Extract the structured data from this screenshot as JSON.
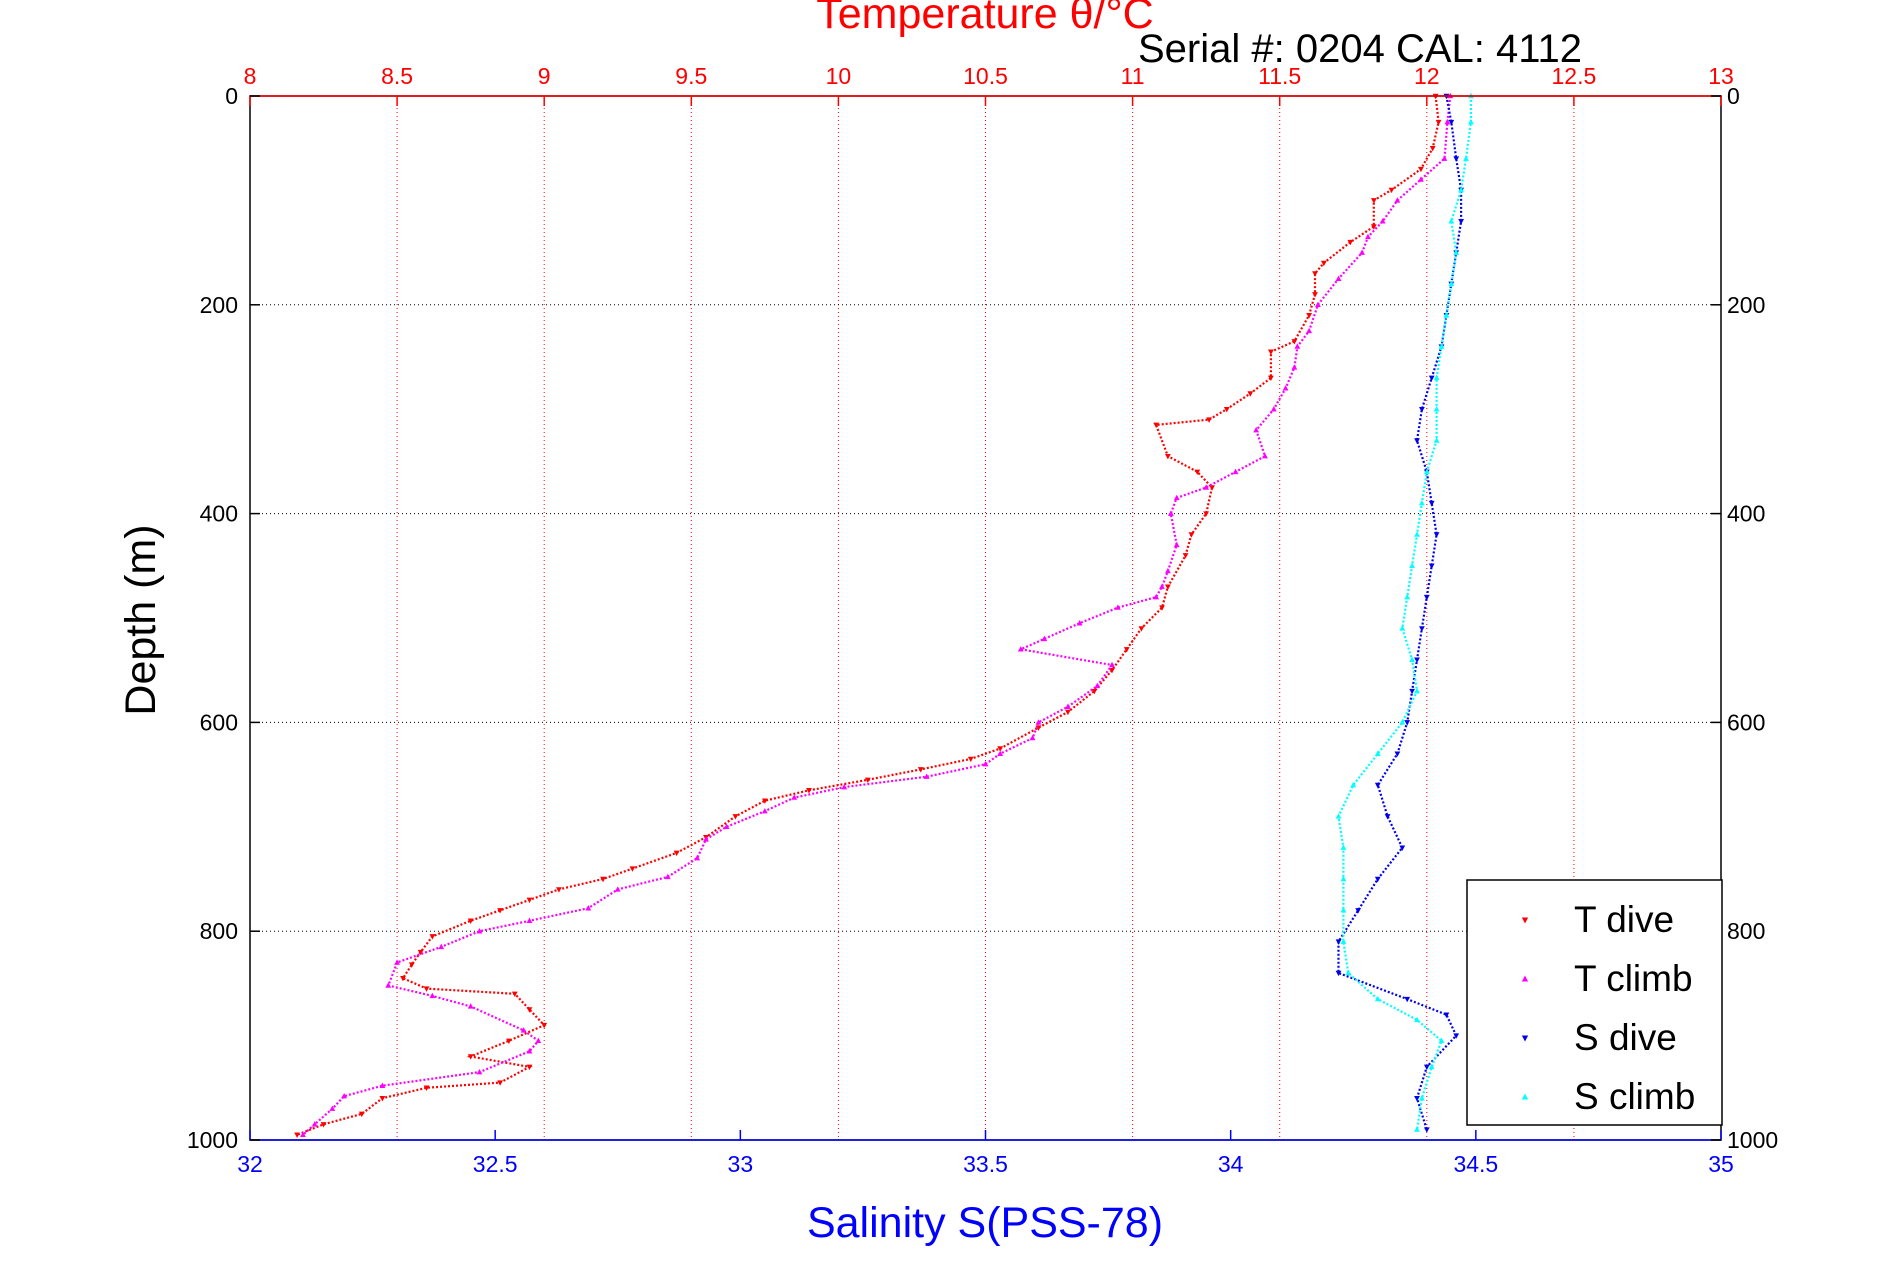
{
  "chart_data": {
    "type": "scatter",
    "title": "Temperature θ/°C",
    "subtitle": "Serial #: 0204  CAL: 4112",
    "ylabel": "Depth (m)",
    "xlabel": "Salinity S(PSS-78)",
    "x_top_label": "Temperature θ/°C",
    "ylim": [
      0,
      1000
    ],
    "y_reversed": true,
    "xlim_top": [
      8,
      13
    ],
    "xlim_bottom": [
      32,
      35
    ],
    "y_ticks": [
      "0",
      "200",
      "400",
      "600",
      "800",
      "1000"
    ],
    "x_top_ticks": [
      "8",
      "8.5",
      "9",
      "9.5",
      "10",
      "10.5",
      "11",
      "11.5",
      "12",
      "12.5",
      "13"
    ],
    "x_bottom_ticks": [
      "32",
      "32.5",
      "33",
      "33.5",
      "34",
      "34.5",
      "35"
    ],
    "grid": true,
    "legend_position": "bottom-right",
    "colors": {
      "temperature_axis": "#ff0000",
      "salinity_axis": "#0000ff",
      "t_dive": "#ff0000",
      "t_climb": "#ff00ff",
      "s_dive": "#0000ee",
      "s_climb": "#00ffff"
    },
    "series": [
      {
        "name": "T dive",
        "axis": "temperature",
        "marker": "triangle-down",
        "points": [
          [
            12.03,
            0
          ],
          [
            12.04,
            25
          ],
          [
            12.02,
            50
          ],
          [
            11.98,
            70
          ],
          [
            11.88,
            90
          ],
          [
            11.82,
            100
          ],
          [
            11.82,
            125
          ],
          [
            11.74,
            140
          ],
          [
            11.65,
            160
          ],
          [
            11.62,
            170
          ],
          [
            11.62,
            190
          ],
          [
            11.6,
            210
          ],
          [
            11.55,
            235
          ],
          [
            11.47,
            245
          ],
          [
            11.47,
            270
          ],
          [
            11.4,
            285
          ],
          [
            11.32,
            300
          ],
          [
            11.26,
            310
          ],
          [
            11.08,
            315
          ],
          [
            11.12,
            345
          ],
          [
            11.22,
            360
          ],
          [
            11.27,
            375
          ],
          [
            11.25,
            400
          ],
          [
            11.2,
            420
          ],
          [
            11.18,
            440
          ],
          [
            11.12,
            470
          ],
          [
            11.1,
            490
          ],
          [
            11.03,
            510
          ],
          [
            10.98,
            530
          ],
          [
            10.93,
            550
          ],
          [
            10.87,
            570
          ],
          [
            10.78,
            590
          ],
          [
            10.68,
            605
          ],
          [
            10.55,
            625
          ],
          [
            10.45,
            635
          ],
          [
            10.28,
            645
          ],
          [
            10.1,
            655
          ],
          [
            9.9,
            665
          ],
          [
            9.75,
            675
          ],
          [
            9.65,
            690
          ],
          [
            9.55,
            710
          ],
          [
            9.45,
            725
          ],
          [
            9.3,
            740
          ],
          [
            9.2,
            750
          ],
          [
            9.05,
            760
          ],
          [
            8.95,
            770
          ],
          [
            8.85,
            780
          ],
          [
            8.75,
            790
          ],
          [
            8.62,
            805
          ],
          [
            8.58,
            820
          ],
          [
            8.55,
            832
          ],
          [
            8.52,
            845
          ],
          [
            8.6,
            855
          ],
          [
            8.9,
            860
          ],
          [
            8.95,
            875
          ],
          [
            9.0,
            890
          ],
          [
            8.88,
            905
          ],
          [
            8.75,
            920
          ],
          [
            8.95,
            930
          ],
          [
            8.85,
            945
          ],
          [
            8.6,
            950
          ],
          [
            8.45,
            960
          ],
          [
            8.38,
            975
          ],
          [
            8.25,
            985
          ],
          [
            8.16,
            995
          ]
        ]
      },
      {
        "name": "T climb",
        "axis": "temperature",
        "marker": "triangle-up",
        "points": [
          [
            12.08,
            0
          ],
          [
            12.07,
            25
          ],
          [
            12.06,
            60
          ],
          [
            11.98,
            80
          ],
          [
            11.9,
            100
          ],
          [
            11.85,
            120
          ],
          [
            11.8,
            135
          ],
          [
            11.78,
            150
          ],
          [
            11.7,
            175
          ],
          [
            11.63,
            200
          ],
          [
            11.6,
            225
          ],
          [
            11.56,
            240
          ],
          [
            11.55,
            260
          ],
          [
            11.52,
            280
          ],
          [
            11.48,
            300
          ],
          [
            11.42,
            320
          ],
          [
            11.45,
            345
          ],
          [
            11.35,
            360
          ],
          [
            11.25,
            375
          ],
          [
            11.15,
            385
          ],
          [
            11.13,
            400
          ],
          [
            11.15,
            430
          ],
          [
            11.12,
            455
          ],
          [
            11.1,
            470
          ],
          [
            11.08,
            480
          ],
          [
            10.95,
            490
          ],
          [
            10.82,
            505
          ],
          [
            10.7,
            520
          ],
          [
            10.62,
            530
          ],
          [
            10.93,
            545
          ],
          [
            10.88,
            565
          ],
          [
            10.78,
            585
          ],
          [
            10.68,
            600
          ],
          [
            10.66,
            615
          ],
          [
            10.55,
            630
          ],
          [
            10.5,
            640
          ],
          [
            10.3,
            652
          ],
          [
            10.02,
            662
          ],
          [
            9.85,
            672
          ],
          [
            9.75,
            685
          ],
          [
            9.62,
            700
          ],
          [
            9.55,
            712
          ],
          [
            9.52,
            730
          ],
          [
            9.42,
            748
          ],
          [
            9.25,
            760
          ],
          [
            9.15,
            778
          ],
          [
            8.95,
            790
          ],
          [
            8.78,
            800
          ],
          [
            8.65,
            815
          ],
          [
            8.5,
            830
          ],
          [
            8.47,
            852
          ],
          [
            8.62,
            862
          ],
          [
            8.75,
            872
          ],
          [
            8.93,
            895
          ],
          [
            8.98,
            905
          ],
          [
            8.95,
            915
          ],
          [
            8.78,
            935
          ],
          [
            8.45,
            948
          ],
          [
            8.32,
            958
          ],
          [
            8.28,
            970
          ],
          [
            8.22,
            985
          ],
          [
            8.18,
            995
          ]
        ]
      },
      {
        "name": "S dive",
        "axis": "salinity",
        "marker": "triangle-down",
        "points": [
          [
            34.44,
            0
          ],
          [
            34.45,
            25
          ],
          [
            34.46,
            60
          ],
          [
            34.47,
            90
          ],
          [
            34.47,
            120
          ],
          [
            34.46,
            150
          ],
          [
            34.45,
            180
          ],
          [
            34.44,
            210
          ],
          [
            34.43,
            240
          ],
          [
            34.41,
            270
          ],
          [
            34.39,
            300
          ],
          [
            34.38,
            330
          ],
          [
            34.4,
            360
          ],
          [
            34.41,
            390
          ],
          [
            34.42,
            420
          ],
          [
            34.41,
            450
          ],
          [
            34.4,
            480
          ],
          [
            34.39,
            510
          ],
          [
            34.38,
            540
          ],
          [
            34.37,
            570
          ],
          [
            34.36,
            600
          ],
          [
            34.34,
            630
          ],
          [
            34.3,
            660
          ],
          [
            34.32,
            690
          ],
          [
            34.35,
            720
          ],
          [
            34.3,
            750
          ],
          [
            34.26,
            780
          ],
          [
            34.22,
            810
          ],
          [
            34.22,
            840
          ],
          [
            34.36,
            865
          ],
          [
            34.44,
            880
          ],
          [
            34.46,
            900
          ],
          [
            34.4,
            930
          ],
          [
            34.38,
            960
          ],
          [
            34.4,
            990
          ]
        ]
      },
      {
        "name": "S climb",
        "axis": "salinity",
        "marker": "triangle-up",
        "points": [
          [
            34.49,
            0
          ],
          [
            34.49,
            25
          ],
          [
            34.48,
            60
          ],
          [
            34.47,
            90
          ],
          [
            34.45,
            120
          ],
          [
            34.46,
            150
          ],
          [
            34.45,
            180
          ],
          [
            34.44,
            210
          ],
          [
            34.43,
            240
          ],
          [
            34.42,
            270
          ],
          [
            34.42,
            300
          ],
          [
            34.42,
            330
          ],
          [
            34.4,
            360
          ],
          [
            34.39,
            390
          ],
          [
            34.38,
            420
          ],
          [
            34.37,
            450
          ],
          [
            34.36,
            480
          ],
          [
            34.35,
            510
          ],
          [
            34.37,
            540
          ],
          [
            34.38,
            570
          ],
          [
            34.35,
            600
          ],
          [
            34.3,
            630
          ],
          [
            34.25,
            660
          ],
          [
            34.22,
            690
          ],
          [
            34.23,
            720
          ],
          [
            34.23,
            750
          ],
          [
            34.23,
            780
          ],
          [
            34.23,
            810
          ],
          [
            34.24,
            840
          ],
          [
            34.3,
            865
          ],
          [
            34.38,
            885
          ],
          [
            34.43,
            905
          ],
          [
            34.41,
            930
          ],
          [
            34.39,
            960
          ],
          [
            34.38,
            990
          ]
        ]
      }
    ]
  }
}
